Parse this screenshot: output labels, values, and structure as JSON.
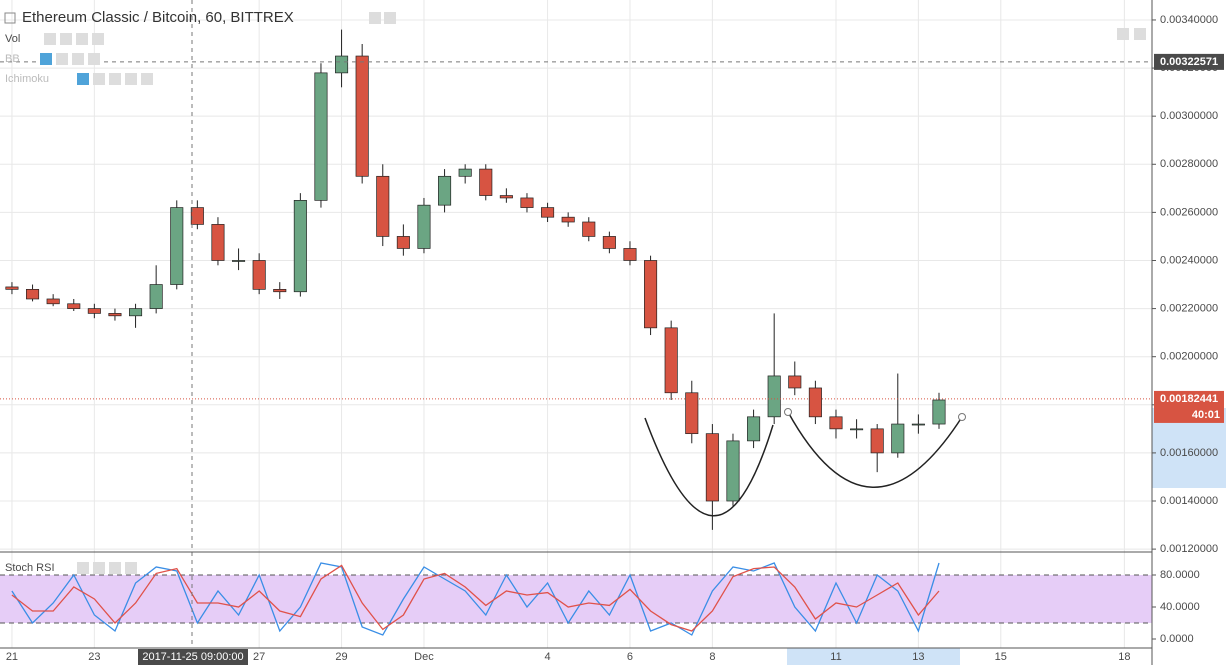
{
  "chart_data": [
    {
      "type": "candlestick",
      "title": "Ethereum Classic / Bitcoin, 60, BITTREX",
      "indicators": [
        "Vol",
        "BB",
        "Ichimoku"
      ],
      "x": [
        0,
        0.5,
        1,
        1.5,
        2,
        2.5,
        3,
        3.5,
        4,
        4.5,
        5,
        5.5,
        6,
        6.5,
        7,
        7.5,
        8,
        8.5,
        9,
        9.5,
        10,
        10.5,
        11,
        11.5,
        12,
        12.5,
        13,
        13.5,
        14,
        14.5,
        15,
        15.5,
        16,
        16.5,
        17,
        17.5,
        18,
        18.5,
        19,
        19.5,
        20,
        20.5,
        21,
        21.5,
        22,
        22.5
      ],
      "open": [
        0.00229,
        0.00228,
        0.00224,
        0.00222,
        0.0022,
        0.00218,
        0.00217,
        0.0022,
        0.0023,
        0.00262,
        0.00255,
        0.0024,
        0.0024,
        0.00228,
        0.00227,
        0.00265,
        0.00318,
        0.00325,
        0.00275,
        0.0025,
        0.00245,
        0.00263,
        0.00275,
        0.00278,
        0.00267,
        0.00266,
        0.00262,
        0.00258,
        0.00256,
        0.0025,
        0.00245,
        0.0024,
        0.00212,
        0.00185,
        0.00168,
        0.0014,
        0.00165,
        0.00175,
        0.00192,
        0.00187,
        0.00175,
        0.0017,
        0.0017,
        0.0016,
        0.00172,
        0.00172
      ],
      "high": [
        0.00231,
        0.0023,
        0.00226,
        0.00224,
        0.00222,
        0.0022,
        0.00222,
        0.00238,
        0.00265,
        0.00265,
        0.00258,
        0.00245,
        0.00243,
        0.00231,
        0.00268,
        0.00322,
        0.00336,
        0.0033,
        0.0028,
        0.00255,
        0.00266,
        0.00278,
        0.0028,
        0.0028,
        0.0027,
        0.00268,
        0.00264,
        0.0026,
        0.00258,
        0.00252,
        0.00248,
        0.00242,
        0.00215,
        0.0019,
        0.00172,
        0.00168,
        0.00178,
        0.00218,
        0.00198,
        0.0019,
        0.00178,
        0.00174,
        0.00172,
        0.00193,
        0.00176,
        0.00185
      ],
      "low": [
        0.00226,
        0.00223,
        0.00221,
        0.00219,
        0.00216,
        0.00215,
        0.00212,
        0.00218,
        0.00228,
        0.00253,
        0.00238,
        0.00236,
        0.00226,
        0.00224,
        0.00225,
        0.00262,
        0.00312,
        0.00272,
        0.00246,
        0.00242,
        0.00243,
        0.0026,
        0.00272,
        0.00265,
        0.00264,
        0.0026,
        0.00256,
        0.00254,
        0.00248,
        0.00243,
        0.00238,
        0.00209,
        0.00182,
        0.00164,
        0.00128,
        0.00138,
        0.00162,
        0.00172,
        0.00184,
        0.00172,
        0.00166,
        0.00166,
        0.00152,
        0.00158,
        0.00168,
        0.0017
      ],
      "close": [
        0.00228,
        0.00224,
        0.00222,
        0.0022,
        0.00218,
        0.00217,
        0.0022,
        0.0023,
        0.00262,
        0.00255,
        0.0024,
        0.0024,
        0.00228,
        0.00227,
        0.00265,
        0.00318,
        0.00325,
        0.00275,
        0.0025,
        0.00245,
        0.00263,
        0.00275,
        0.00278,
        0.00267,
        0.00266,
        0.00262,
        0.00258,
        0.00256,
        0.0025,
        0.00245,
        0.0024,
        0.00212,
        0.00185,
        0.00168,
        0.0014,
        0.00165,
        0.00175,
        0.00192,
        0.00187,
        0.00175,
        0.0017,
        0.0017,
        0.0016,
        0.00172,
        0.00172,
        0.00182
      ],
      "up_color": "#6ba583",
      "down_color": "#d75442",
      "xlim": [
        -0.29,
        27.67
      ],
      "xticks": [
        {
          "value": 0,
          "label": "21"
        },
        {
          "value": 2,
          "label": "23"
        },
        {
          "value": 6,
          "label": "27"
        },
        {
          "value": 8,
          "label": "29"
        },
        {
          "value": 10,
          "label": "Dec"
        },
        {
          "value": 13,
          "label": "4"
        },
        {
          "value": 15,
          "label": "6"
        },
        {
          "value": 17,
          "label": "8"
        },
        {
          "value": 20,
          "label": "11"
        },
        {
          "value": 22,
          "label": "13"
        },
        {
          "value": 24,
          "label": "15"
        },
        {
          "value": 27,
          "label": "18"
        }
      ],
      "ylim": [
        0.001188,
        0.003483
      ],
      "yticks": [
        {
          "value": 0.0012,
          "label": "0.00120000"
        },
        {
          "value": 0.0014,
          "label": "0.00140000"
        },
        {
          "value": 0.0016,
          "label": "0.00160000"
        },
        {
          "value": 0.0018,
          "label": "0.00180000"
        },
        {
          "value": 0.002,
          "label": "0.00200000"
        },
        {
          "value": 0.0022,
          "label": "0.00220000"
        },
        {
          "value": 0.0024,
          "label": "0.00240000"
        },
        {
          "value": 0.0026,
          "label": "0.00260000"
        },
        {
          "value": 0.0028,
          "label": "0.00280000"
        },
        {
          "value": 0.003,
          "label": "0.00300000"
        },
        {
          "value": 0.0032,
          "label": "0.00320000"
        },
        {
          "value": 0.0034,
          "label": "0.00340000"
        }
      ],
      "crosshair_price": {
        "value": 0.00322571,
        "label": "0.00322571"
      },
      "last_price": {
        "value": 0.00182441,
        "label": "0.00182441"
      },
      "countdown": "40:01",
      "crosshair_time": "2017-11-25 09:00:00",
      "grid": true
    },
    {
      "type": "line",
      "title": "Stoch RSI",
      "series": [
        {
          "color": "#3a8ee6",
          "values": [
            60,
            20,
            45,
            80,
            30,
            10,
            70,
            90,
            85,
            20,
            60,
            30,
            80,
            10,
            40,
            95,
            90,
            15,
            5,
            50,
            90,
            75,
            60,
            30,
            80,
            40,
            70,
            20,
            60,
            30,
            80,
            10,
            20,
            5,
            60,
            90,
            85,
            95,
            40,
            10,
            70,
            20,
            80,
            60,
            10,
            95
          ]
        },
        {
          "color": "#e0524a",
          "values": [
            55,
            35,
            35,
            65,
            50,
            20,
            45,
            82,
            88,
            45,
            45,
            40,
            60,
            35,
            28,
            75,
            92,
            45,
            12,
            30,
            75,
            82,
            65,
            42,
            60,
            55,
            58,
            40,
            45,
            42,
            62,
            35,
            18,
            10,
            35,
            78,
            88,
            90,
            65,
            25,
            45,
            40,
            55,
            70,
            30,
            60
          ]
        }
      ],
      "ylim": [
        -11.25,
        107.5
      ],
      "yticks": [
        {
          "value": 0,
          "label": "0.0000"
        },
        {
          "value": 40,
          "label": "40.0000"
        },
        {
          "value": 80,
          "label": "80.0000"
        }
      ],
      "bands": [
        20,
        80
      ]
    }
  ]
}
